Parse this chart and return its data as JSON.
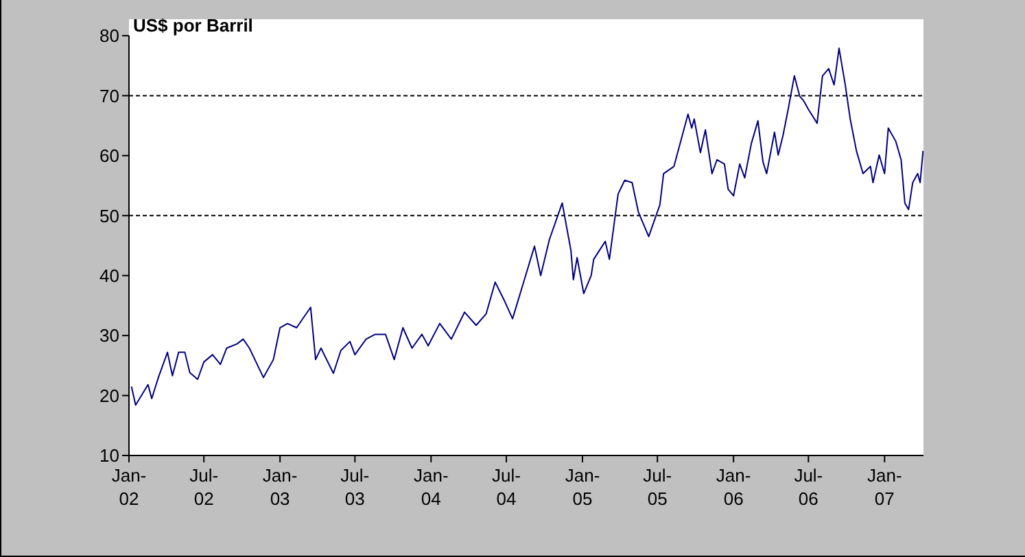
{
  "chart_data": {
    "type": "line",
    "title": "US$ por Barril",
    "x": [
      "2002-01-07",
      "2002-01-17",
      "2002-02-16",
      "2002-02-25",
      "2002-03-13",
      "2002-04-04",
      "2002-04-16",
      "2002-05-01",
      "2002-05-16",
      "2002-05-28",
      "2002-06-16",
      "2002-07-01",
      "2002-07-22",
      "2002-08-10",
      "2002-08-25",
      "2002-09-19",
      "2002-10-04",
      "2002-10-19",
      "2002-11-22",
      "2002-12-16",
      "2003-01-01",
      "2003-01-19",
      "2003-02-10",
      "2003-03-16",
      "2003-03-28",
      "2003-04-10",
      "2003-05-10",
      "2003-05-28",
      "2003-06-19",
      "2003-07-01",
      "2003-07-28",
      "2003-08-19",
      "2003-09-13",
      "2003-10-04",
      "2003-10-25",
      "2003-11-16",
      "2003-12-10",
      "2003-12-25",
      "2004-01-22",
      "2004-02-19",
      "2004-03-22",
      "2004-04-19",
      "2004-05-13",
      "2004-06-04",
      "2004-06-25",
      "2004-07-16",
      "2004-08-10",
      "2004-09-07",
      "2004-09-22",
      "2004-10-13",
      "2004-11-13",
      "2004-12-04",
      "2004-12-10",
      "2004-12-19",
      "2005-01-04",
      "2005-01-22",
      "2005-01-28",
      "2005-02-25",
      "2005-03-07",
      "2005-03-28",
      "2005-04-13",
      "2005-05-01",
      "2005-05-16",
      "2005-06-10",
      "2005-07-07",
      "2005-07-16",
      "2005-08-10",
      "2005-09-13",
      "2005-09-22",
      "2005-09-28",
      "2005-10-13",
      "2005-10-25",
      "2005-11-10",
      "2005-11-22",
      "2005-12-10",
      "2005-12-19",
      "2006-01-01",
      "2006-01-16",
      "2006-01-28",
      "2006-02-13",
      "2006-03-01",
      "2006-03-13",
      "2006-03-22",
      "2006-04-10",
      "2006-04-19",
      "2006-05-01",
      "2006-05-13",
      "2006-05-28",
      "2006-06-10",
      "2006-06-19",
      "2006-07-01",
      "2006-07-22",
      "2006-08-04",
      "2006-08-19",
      "2006-09-01",
      "2006-09-13",
      "2006-09-28",
      "2006-10-10",
      "2006-10-25",
      "2006-11-10",
      "2006-11-28",
      "2006-12-04",
      "2006-12-19",
      "2007-01-01",
      "2007-01-10",
      "2007-01-28",
      "2007-02-10",
      "2007-02-19",
      "2007-02-28",
      "2007-03-10",
      "2007-03-22",
      "2007-03-28",
      "2007-04-04"
    ],
    "series": [
      {
        "color": "#000080",
        "values": [
          21.5,
          18.4,
          21.8,
          19.5,
          23,
          27.2,
          23.3,
          27.2,
          27.2,
          23.8,
          22.7,
          25.6,
          26.8,
          25.2,
          27.9,
          28.6,
          29.4,
          27.9,
          23,
          26,
          31.3,
          32,
          31.3,
          34.7,
          26,
          27.9,
          23.7,
          27.5,
          29,
          26.8,
          29.4,
          30.2,
          30.2,
          26,
          31.3,
          27.9,
          30.2,
          28.3,
          32,
          29.4,
          33.9,
          31.7,
          33.6,
          38.9,
          36,
          32.8,
          38.5,
          44.9,
          40,
          46,
          52.1,
          44.2,
          39.3,
          43,
          37,
          40,
          42.7,
          45.7,
          42.7,
          53.6,
          55.9,
          55.5,
          50.6,
          46.5,
          51.8,
          57,
          58.2,
          66.9,
          64.6,
          66.1,
          60.5,
          64.3,
          57,
          59.3,
          58.6,
          54.4,
          53.3,
          58.6,
          56.3,
          62,
          65.8,
          59,
          57,
          63.9,
          60.1,
          63.5,
          67.7,
          73.3,
          69.9,
          69.2,
          67.7,
          65.4,
          73.3,
          74.5,
          71.8,
          77.9,
          71.8,
          66.1,
          60.8,
          57,
          58.2,
          55.5,
          60.1,
          57,
          64.6,
          62.4,
          59.3,
          52.1,
          51,
          55.5,
          57,
          55.5,
          60.8
        ]
      }
    ],
    "xlim": [
      "2002-01-01",
      "2007-04-05"
    ],
    "xticks": [
      {
        "value": "2002-01-01",
        "label": "Jan-02"
      },
      {
        "value": "2002-07-01",
        "label": "Jul-02"
      },
      {
        "value": "2003-01-01",
        "label": "Jan-03"
      },
      {
        "value": "2003-07-01",
        "label": "Jul-03"
      },
      {
        "value": "2004-01-01",
        "label": "Jan-04"
      },
      {
        "value": "2004-07-01",
        "label": "Jul-04"
      },
      {
        "value": "2005-01-01",
        "label": "Jan-05"
      },
      {
        "value": "2005-07-01",
        "label": "Jul-05"
      },
      {
        "value": "2006-01-01",
        "label": "Jan-06"
      },
      {
        "value": "2006-07-01",
        "label": "Jul-06"
      },
      {
        "value": "2007-01-01",
        "label": "Jan-07"
      }
    ],
    "ylim": [
      10,
      80
    ],
    "yticks": [
      10,
      20,
      30,
      40,
      50,
      60,
      70,
      80
    ],
    "ref_lines": [
      {
        "axis": "y",
        "value": 70,
        "color": "#000000",
        "line_style": "dashed"
      },
      {
        "axis": "y",
        "value": 50,
        "color": "#000000",
        "line_style": "dashed"
      }
    ],
    "grid": false,
    "legend": false,
    "marker": "none",
    "line_style": "solid"
  }
}
